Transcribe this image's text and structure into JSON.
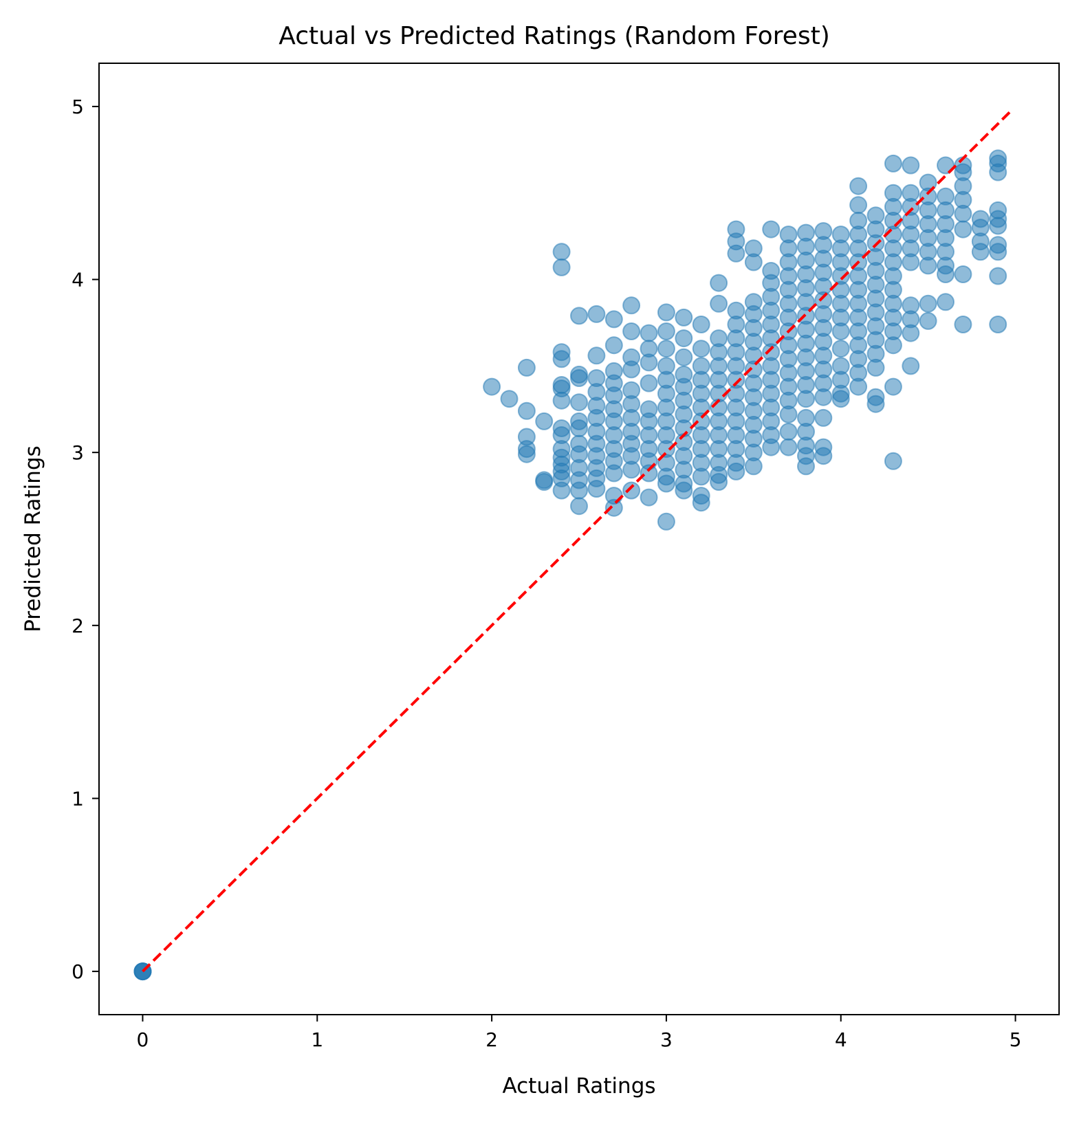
{
  "chart_data": {
    "type": "scatter",
    "title": "Actual vs Predicted Ratings (Random Forest)",
    "xlabel": "Actual Ratings",
    "ylabel": "Predicted Ratings",
    "xlim": [
      -0.25,
      5.25
    ],
    "ylim": [
      -0.25,
      5.25
    ],
    "xticks": [
      "0",
      "1",
      "2",
      "3",
      "4",
      "5"
    ],
    "yticks": [
      "0",
      "1",
      "2",
      "3",
      "4",
      "5"
    ],
    "grid": false,
    "legend": "none",
    "point_color": "#1f77b4",
    "point_alpha": 0.5,
    "reference_line": {
      "x": [
        0,
        4.98
      ],
      "y": [
        0,
        4.98
      ],
      "style": "dashed",
      "color": "#ff0000"
    },
    "points": [
      [
        0,
        0
      ],
      [
        0,
        0
      ],
      [
        0,
        0
      ],
      [
        0,
        0
      ],
      [
        2.0,
        3.38
      ],
      [
        2.1,
        3.31
      ],
      [
        2.2,
        3.49
      ],
      [
        2.2,
        3.24
      ],
      [
        2.2,
        3.09
      ],
      [
        2.2,
        2.99
      ],
      [
        2.2,
        3.02
      ],
      [
        2.3,
        3.18
      ],
      [
        2.3,
        2.84
      ],
      [
        2.3,
        2.83
      ],
      [
        2.4,
        4.16
      ],
      [
        2.4,
        4.07
      ],
      [
        2.4,
        3.58
      ],
      [
        2.4,
        3.54
      ],
      [
        2.4,
        3.39
      ],
      [
        2.4,
        3.37
      ],
      [
        2.4,
        3.3
      ],
      [
        2.4,
        3.14
      ],
      [
        2.4,
        3.1
      ],
      [
        2.4,
        3.02
      ],
      [
        2.4,
        2.97
      ],
      [
        2.4,
        2.93
      ],
      [
        2.4,
        2.89
      ],
      [
        2.4,
        2.85
      ],
      [
        2.4,
        2.78
      ],
      [
        2.5,
        3.79
      ],
      [
        2.5,
        3.45
      ],
      [
        2.5,
        3.43
      ],
      [
        2.5,
        3.29
      ],
      [
        2.5,
        3.18
      ],
      [
        2.5,
        3.14
      ],
      [
        2.5,
        3.05
      ],
      [
        2.5,
        2.99
      ],
      [
        2.5,
        2.91
      ],
      [
        2.5,
        2.84
      ],
      [
        2.5,
        2.78
      ],
      [
        2.5,
        2.69
      ],
      [
        2.6,
        3.8
      ],
      [
        2.6,
        3.56
      ],
      [
        2.6,
        3.43
      ],
      [
        2.6,
        3.35
      ],
      [
        2.6,
        3.27
      ],
      [
        2.6,
        3.2
      ],
      [
        2.6,
        3.12
      ],
      [
        2.6,
        3.05
      ],
      [
        2.6,
        2.98
      ],
      [
        2.6,
        2.91
      ],
      [
        2.6,
        2.85
      ],
      [
        2.6,
        2.79
      ],
      [
        2.7,
        3.77
      ],
      [
        2.7,
        3.62
      ],
      [
        2.7,
        3.47
      ],
      [
        2.7,
        3.4
      ],
      [
        2.7,
        3.33
      ],
      [
        2.7,
        3.25
      ],
      [
        2.7,
        3.18
      ],
      [
        2.7,
        3.1
      ],
      [
        2.7,
        3.02
      ],
      [
        2.7,
        2.95
      ],
      [
        2.7,
        2.88
      ],
      [
        2.7,
        2.75
      ],
      [
        2.7,
        2.68
      ],
      [
        2.8,
        3.85
      ],
      [
        2.8,
        3.7
      ],
      [
        2.8,
        3.55
      ],
      [
        2.8,
        3.48
      ],
      [
        2.8,
        3.36
      ],
      [
        2.8,
        3.28
      ],
      [
        2.8,
        3.2
      ],
      [
        2.8,
        3.12
      ],
      [
        2.8,
        3.05
      ],
      [
        2.8,
        2.98
      ],
      [
        2.8,
        2.9
      ],
      [
        2.8,
        2.78
      ],
      [
        2.9,
        3.69
      ],
      [
        2.9,
        3.6
      ],
      [
        2.9,
        3.52
      ],
      [
        2.9,
        3.4
      ],
      [
        2.9,
        3.25
      ],
      [
        2.9,
        3.18
      ],
      [
        2.9,
        3.1
      ],
      [
        2.9,
        3.02
      ],
      [
        2.9,
        2.95
      ],
      [
        2.9,
        2.88
      ],
      [
        2.9,
        2.74
      ],
      [
        3.0,
        3.81
      ],
      [
        3.0,
        3.7
      ],
      [
        3.0,
        3.6
      ],
      [
        3.0,
        3.5
      ],
      [
        3.0,
        3.42
      ],
      [
        3.0,
        3.34
      ],
      [
        3.0,
        3.26
      ],
      [
        3.0,
        3.18
      ],
      [
        3.0,
        3.1
      ],
      [
        3.0,
        3.02
      ],
      [
        3.0,
        2.94
      ],
      [
        3.0,
        2.86
      ],
      [
        3.0,
        2.82
      ],
      [
        3.0,
        2.6
      ],
      [
        3.1,
        3.78
      ],
      [
        3.1,
        3.66
      ],
      [
        3.1,
        3.55
      ],
      [
        3.1,
        3.45
      ],
      [
        3.1,
        3.38
      ],
      [
        3.1,
        3.3
      ],
      [
        3.1,
        3.22
      ],
      [
        3.1,
        3.14
      ],
      [
        3.1,
        3.06
      ],
      [
        3.1,
        2.98
      ],
      [
        3.1,
        2.9
      ],
      [
        3.1,
        2.82
      ],
      [
        3.1,
        2.78
      ],
      [
        3.2,
        3.74
      ],
      [
        3.2,
        3.6
      ],
      [
        3.2,
        3.5
      ],
      [
        3.2,
        3.42
      ],
      [
        3.2,
        3.34
      ],
      [
        3.2,
        3.26
      ],
      [
        3.2,
        3.18
      ],
      [
        3.2,
        3.1
      ],
      [
        3.2,
        3.02
      ],
      [
        3.2,
        2.94
      ],
      [
        3.2,
        2.86
      ],
      [
        3.2,
        2.75
      ],
      [
        3.2,
        2.71
      ],
      [
        3.3,
        3.98
      ],
      [
        3.3,
        3.86
      ],
      [
        3.3,
        3.66
      ],
      [
        3.3,
        3.58
      ],
      [
        3.3,
        3.5
      ],
      [
        3.3,
        3.42
      ],
      [
        3.3,
        3.34
      ],
      [
        3.3,
        3.26
      ],
      [
        3.3,
        3.18
      ],
      [
        3.3,
        3.1
      ],
      [
        3.3,
        3.02
      ],
      [
        3.3,
        2.94
      ],
      [
        3.3,
        2.87
      ],
      [
        3.3,
        2.83
      ],
      [
        3.4,
        4.29
      ],
      [
        3.4,
        4.22
      ],
      [
        3.4,
        4.15
      ],
      [
        3.4,
        3.82
      ],
      [
        3.4,
        3.74
      ],
      [
        3.4,
        3.66
      ],
      [
        3.4,
        3.58
      ],
      [
        3.4,
        3.5
      ],
      [
        3.4,
        3.42
      ],
      [
        3.4,
        3.34
      ],
      [
        3.4,
        3.26
      ],
      [
        3.4,
        3.18
      ],
      [
        3.4,
        3.1
      ],
      [
        3.4,
        3.02
      ],
      [
        3.4,
        2.94
      ],
      [
        3.4,
        2.89
      ],
      [
        3.5,
        4.18
      ],
      [
        3.5,
        4.1
      ],
      [
        3.5,
        3.87
      ],
      [
        3.5,
        3.8
      ],
      [
        3.5,
        3.72
      ],
      [
        3.5,
        3.64
      ],
      [
        3.5,
        3.56
      ],
      [
        3.5,
        3.48
      ],
      [
        3.5,
        3.4
      ],
      [
        3.5,
        3.32
      ],
      [
        3.5,
        3.24
      ],
      [
        3.5,
        3.16
      ],
      [
        3.5,
        3.08
      ],
      [
        3.5,
        3.0
      ],
      [
        3.5,
        2.92
      ],
      [
        3.6,
        4.29
      ],
      [
        3.6,
        4.05
      ],
      [
        3.6,
        3.98
      ],
      [
        3.6,
        3.9
      ],
      [
        3.6,
        3.82
      ],
      [
        3.6,
        3.74
      ],
      [
        3.6,
        3.66
      ],
      [
        3.6,
        3.58
      ],
      [
        3.6,
        3.5
      ],
      [
        3.6,
        3.42
      ],
      [
        3.6,
        3.34
      ],
      [
        3.6,
        3.26
      ],
      [
        3.6,
        3.18
      ],
      [
        3.6,
        3.1
      ],
      [
        3.6,
        3.03
      ],
      [
        3.7,
        4.26
      ],
      [
        3.7,
        4.18
      ],
      [
        3.7,
        4.1
      ],
      [
        3.7,
        4.02
      ],
      [
        3.7,
        3.94
      ],
      [
        3.7,
        3.86
      ],
      [
        3.7,
        3.78
      ],
      [
        3.7,
        3.7
      ],
      [
        3.7,
        3.62
      ],
      [
        3.7,
        3.54
      ],
      [
        3.7,
        3.46
      ],
      [
        3.7,
        3.38
      ],
      [
        3.7,
        3.3
      ],
      [
        3.7,
        3.22
      ],
      [
        3.7,
        3.12
      ],
      [
        3.7,
        3.03
      ],
      [
        3.8,
        4.27
      ],
      [
        3.8,
        4.19
      ],
      [
        3.8,
        4.11
      ],
      [
        3.8,
        4.03
      ],
      [
        3.8,
        3.95
      ],
      [
        3.8,
        3.87
      ],
      [
        3.8,
        3.79
      ],
      [
        3.8,
        3.71
      ],
      [
        3.8,
        3.63
      ],
      [
        3.8,
        3.55
      ],
      [
        3.8,
        3.47
      ],
      [
        3.8,
        3.39
      ],
      [
        3.8,
        3.31
      ],
      [
        3.8,
        3.2
      ],
      [
        3.8,
        3.12
      ],
      [
        3.8,
        3.04
      ],
      [
        3.8,
        2.98
      ],
      [
        3.8,
        2.92
      ],
      [
        3.9,
        4.28
      ],
      [
        3.9,
        4.2
      ],
      [
        3.9,
        4.12
      ],
      [
        3.9,
        4.04
      ],
      [
        3.9,
        3.96
      ],
      [
        3.9,
        3.88
      ],
      [
        3.9,
        3.8
      ],
      [
        3.9,
        3.72
      ],
      [
        3.9,
        3.64
      ],
      [
        3.9,
        3.56
      ],
      [
        3.9,
        3.48
      ],
      [
        3.9,
        3.4
      ],
      [
        3.9,
        3.32
      ],
      [
        3.9,
        3.2
      ],
      [
        3.9,
        3.03
      ],
      [
        3.9,
        2.98
      ],
      [
        4.0,
        4.26
      ],
      [
        4.0,
        4.18
      ],
      [
        4.0,
        4.1
      ],
      [
        4.0,
        4.02
      ],
      [
        4.0,
        3.94
      ],
      [
        4.0,
        3.86
      ],
      [
        4.0,
        3.78
      ],
      [
        4.0,
        3.7
      ],
      [
        4.0,
        3.6
      ],
      [
        4.0,
        3.5
      ],
      [
        4.0,
        3.42
      ],
      [
        4.0,
        3.34
      ],
      [
        4.0,
        3.31
      ],
      [
        4.1,
        4.54
      ],
      [
        4.1,
        4.43
      ],
      [
        4.1,
        4.34
      ],
      [
        4.1,
        4.26
      ],
      [
        4.1,
        4.18
      ],
      [
        4.1,
        4.1
      ],
      [
        4.1,
        4.02
      ],
      [
        4.1,
        3.94
      ],
      [
        4.1,
        3.86
      ],
      [
        4.1,
        3.78
      ],
      [
        4.1,
        3.7
      ],
      [
        4.1,
        3.62
      ],
      [
        4.1,
        3.54
      ],
      [
        4.1,
        3.46
      ],
      [
        4.1,
        3.38
      ],
      [
        4.2,
        4.37
      ],
      [
        4.2,
        4.29
      ],
      [
        4.2,
        4.21
      ],
      [
        4.2,
        4.13
      ],
      [
        4.2,
        4.05
      ],
      [
        4.2,
        3.97
      ],
      [
        4.2,
        3.89
      ],
      [
        4.2,
        3.81
      ],
      [
        4.2,
        3.73
      ],
      [
        4.2,
        3.65
      ],
      [
        4.2,
        3.57
      ],
      [
        4.2,
        3.49
      ],
      [
        4.2,
        3.32
      ],
      [
        4.2,
        3.28
      ],
      [
        4.3,
        4.67
      ],
      [
        4.3,
        4.5
      ],
      [
        4.3,
        4.42
      ],
      [
        4.3,
        4.34
      ],
      [
        4.3,
        4.26
      ],
      [
        4.3,
        4.18
      ],
      [
        4.3,
        4.1
      ],
      [
        4.3,
        4.02
      ],
      [
        4.3,
        3.94
      ],
      [
        4.3,
        3.86
      ],
      [
        4.3,
        3.78
      ],
      [
        4.3,
        3.7
      ],
      [
        4.3,
        3.62
      ],
      [
        4.3,
        3.38
      ],
      [
        4.3,
        2.95
      ],
      [
        4.4,
        4.66
      ],
      [
        4.4,
        4.5
      ],
      [
        4.4,
        4.42
      ],
      [
        4.4,
        4.34
      ],
      [
        4.4,
        4.26
      ],
      [
        4.4,
        4.18
      ],
      [
        4.4,
        4.1
      ],
      [
        4.4,
        3.85
      ],
      [
        4.4,
        3.77
      ],
      [
        4.4,
        3.69
      ],
      [
        4.4,
        3.5
      ],
      [
        4.5,
        4.56
      ],
      [
        4.5,
        4.48
      ],
      [
        4.5,
        4.4
      ],
      [
        4.5,
        4.32
      ],
      [
        4.5,
        4.24
      ],
      [
        4.5,
        4.16
      ],
      [
        4.5,
        4.08
      ],
      [
        4.5,
        3.86
      ],
      [
        4.5,
        3.76
      ],
      [
        4.6,
        4.66
      ],
      [
        4.6,
        4.48
      ],
      [
        4.6,
        4.4
      ],
      [
        4.6,
        4.32
      ],
      [
        4.6,
        4.24
      ],
      [
        4.6,
        4.16
      ],
      [
        4.6,
        4.08
      ],
      [
        4.6,
        4.03
      ],
      [
        4.6,
        3.87
      ],
      [
        4.7,
        4.66
      ],
      [
        4.7,
        4.62
      ],
      [
        4.7,
        4.54
      ],
      [
        4.7,
        4.46
      ],
      [
        4.7,
        4.38
      ],
      [
        4.7,
        4.29
      ],
      [
        4.7,
        4.03
      ],
      [
        4.7,
        3.74
      ],
      [
        4.8,
        4.35
      ],
      [
        4.8,
        4.3
      ],
      [
        4.8,
        4.22
      ],
      [
        4.8,
        4.16
      ],
      [
        4.9,
        4.7
      ],
      [
        4.9,
        4.67
      ],
      [
        4.9,
        4.62
      ],
      [
        4.9,
        4.4
      ],
      [
        4.9,
        4.35
      ],
      [
        4.9,
        4.31
      ],
      [
        4.9,
        4.2
      ],
      [
        4.9,
        4.16
      ],
      [
        4.9,
        4.02
      ],
      [
        4.9,
        3.74
      ]
    ]
  }
}
